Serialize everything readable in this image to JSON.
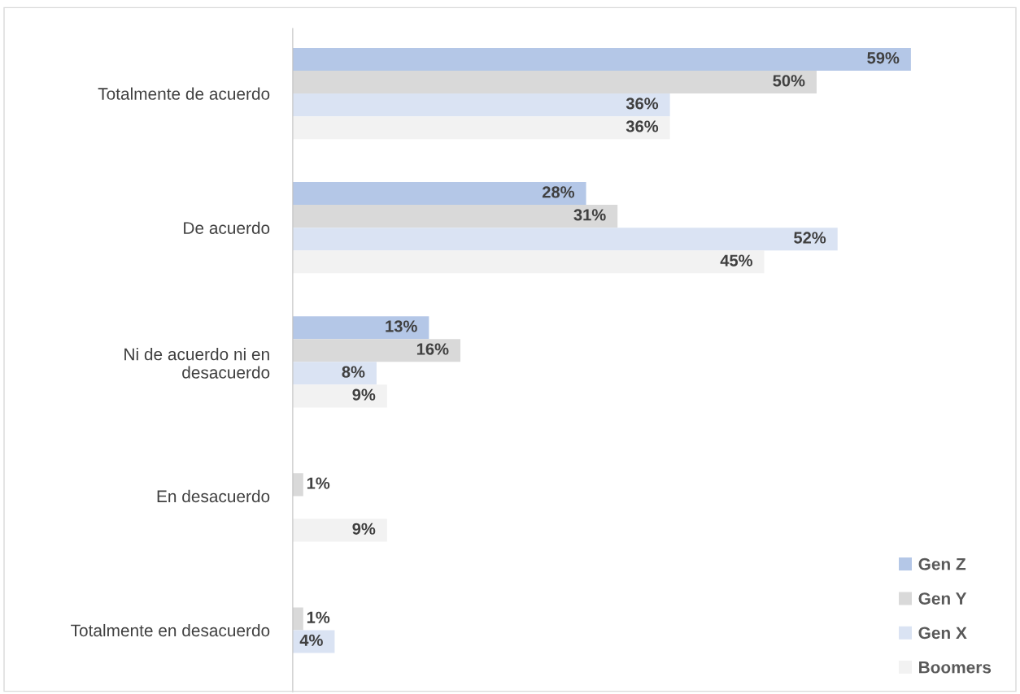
{
  "chart_data": {
    "type": "bar",
    "orientation": "horizontal",
    "categories": [
      "Totalmente de acuerdo",
      "De acuerdo",
      "Ni de acuerdo ni en\ndesacuerdo",
      "En desacuerdo",
      "Totalmente en desacuerdo"
    ],
    "series": [
      {
        "name": "Gen Z",
        "color": "#b4c7e7",
        "values": [
          59,
          28,
          13,
          null,
          null
        ],
        "value_labels": [
          "59%",
          "28%",
          "13%",
          null,
          null
        ]
      },
      {
        "name": "Gen Y",
        "color": "#d9d9d9",
        "values": [
          50,
          31,
          16,
          1,
          1
        ],
        "value_labels": [
          "50%",
          "31%",
          "16%",
          "1%",
          "1%"
        ]
      },
      {
        "name": "Gen X",
        "color": "#dae3f3",
        "values": [
          36,
          52,
          8,
          null,
          4
        ],
        "value_labels": [
          "36%",
          "52%",
          "8%",
          null,
          "4%"
        ]
      },
      {
        "name": "Boomers",
        "color": "#f2f2f2",
        "values": [
          36,
          45,
          9,
          9,
          null
        ],
        "value_labels": [
          "36%",
          "45%",
          "9%",
          "9%",
          null
        ]
      }
    ],
    "legend": "bottom right",
    "grid": false
  }
}
